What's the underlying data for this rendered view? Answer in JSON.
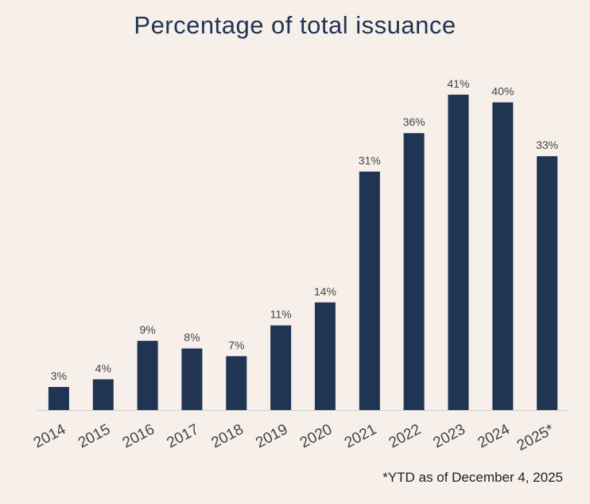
{
  "chart_data": {
    "type": "bar",
    "title": "Percentage of total issuance",
    "categories": [
      "2014",
      "2015",
      "2016",
      "2017",
      "2018",
      "2019",
      "2020",
      "2021",
      "2022",
      "2023",
      "2024",
      "2025*"
    ],
    "values": [
      3,
      4,
      9,
      8,
      7,
      11,
      14,
      31,
      36,
      41,
      40,
      33
    ],
    "value_labels": [
      "3%",
      "4%",
      "9%",
      "8%",
      "7%",
      "11%",
      "14%",
      "31%",
      "36%",
      "41%",
      "40%",
      "33%"
    ],
    "xlabel": "",
    "ylabel": "",
    "ylim": [
      0,
      45
    ],
    "grid": false,
    "bar_color": "#1f3553",
    "footnote": "*YTD as of December 4, 2025"
  },
  "colors": {
    "background": "#f7efe9",
    "bar": "#1f3553",
    "title": "#1f3553"
  }
}
